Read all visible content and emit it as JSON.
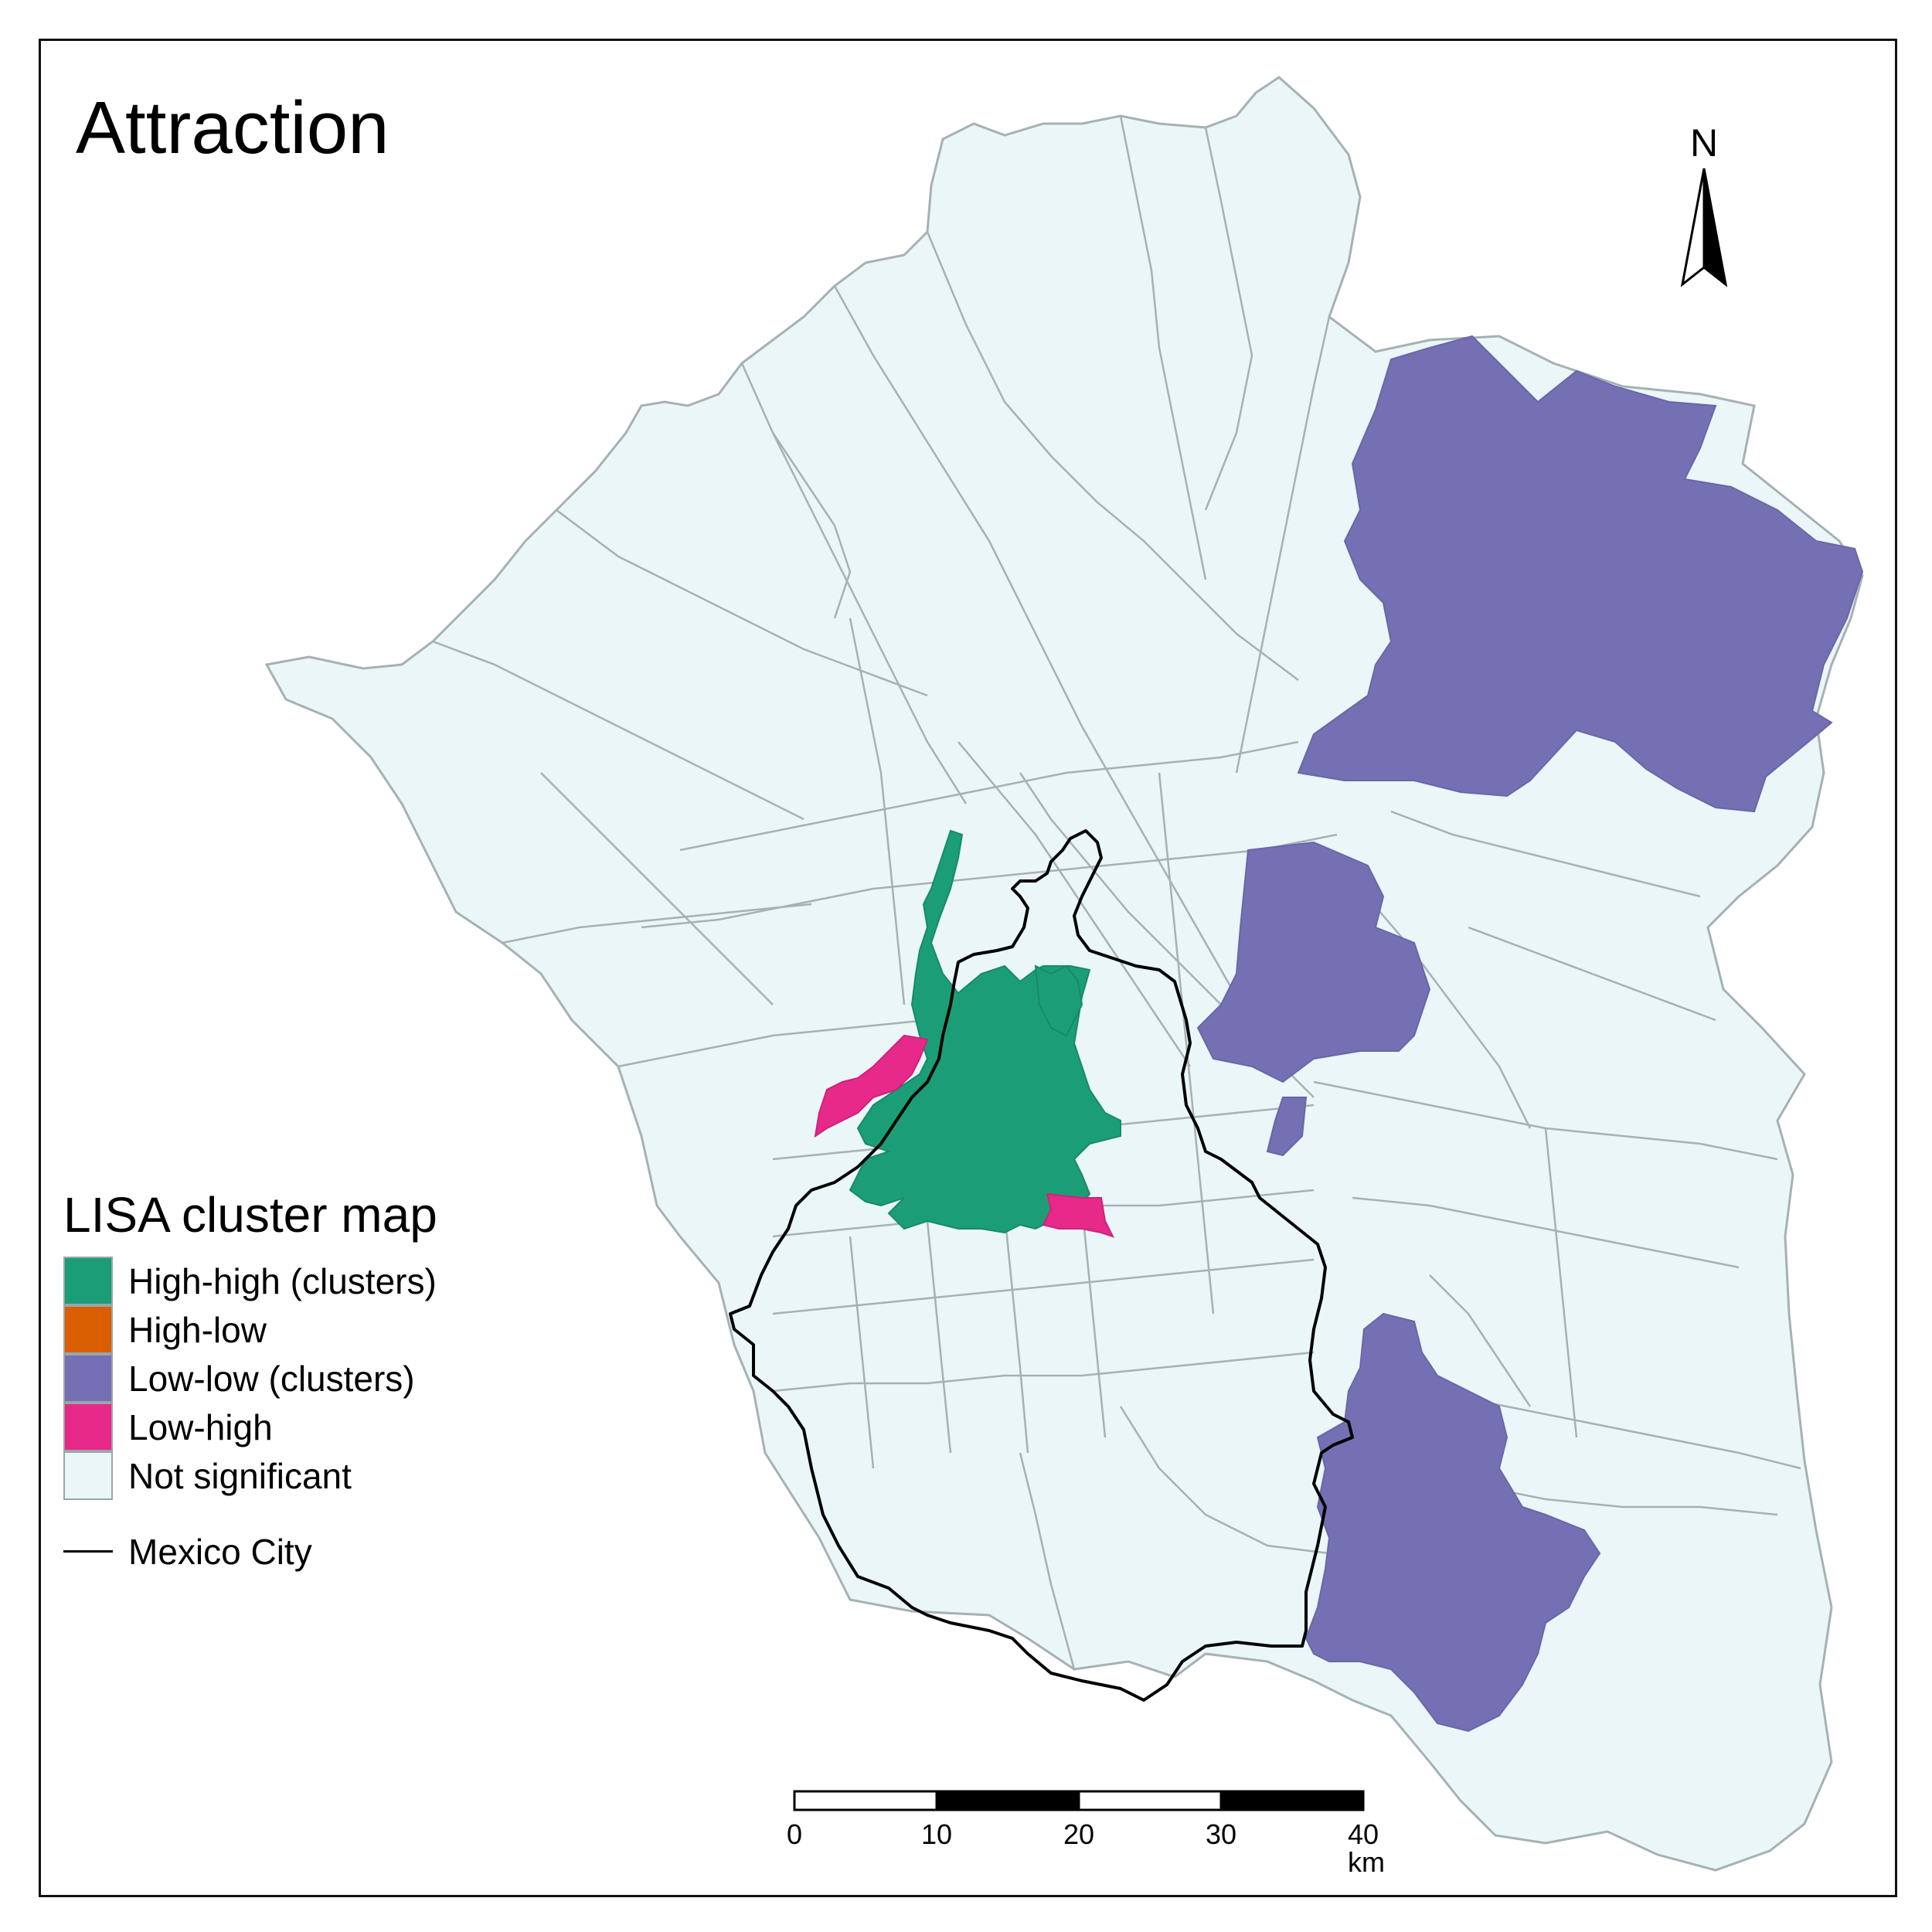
{
  "map": {
    "title": "Attraction",
    "north_arrow": {
      "label": "N"
    },
    "legend": {
      "title": "LISA cluster map",
      "items": [
        {
          "label": "High-high (clusters)",
          "color": "#1b9e77"
        },
        {
          "label": "High-low",
          "color": "#d95f02"
        },
        {
          "label": "Low-low (clusters)",
          "color": "#7570b3"
        },
        {
          "label": "Low-high",
          "color": "#e7298a"
        },
        {
          "label": "Not significant",
          "color": "#eaf6f8"
        }
      ],
      "boundary": {
        "label": "Mexico City",
        "color": "#000000"
      }
    },
    "scalebar": {
      "ticks": [
        "0",
        "10",
        "20",
        "30",
        "40 km"
      ],
      "unit": "km"
    },
    "colors": {
      "not_significant": "#eaf6f8",
      "unit_border": "#a6b1b4",
      "high_high": "#1b9e77",
      "low_low": "#7570b3",
      "low_high": "#e7298a",
      "city_boundary": "#000000"
    }
  }
}
